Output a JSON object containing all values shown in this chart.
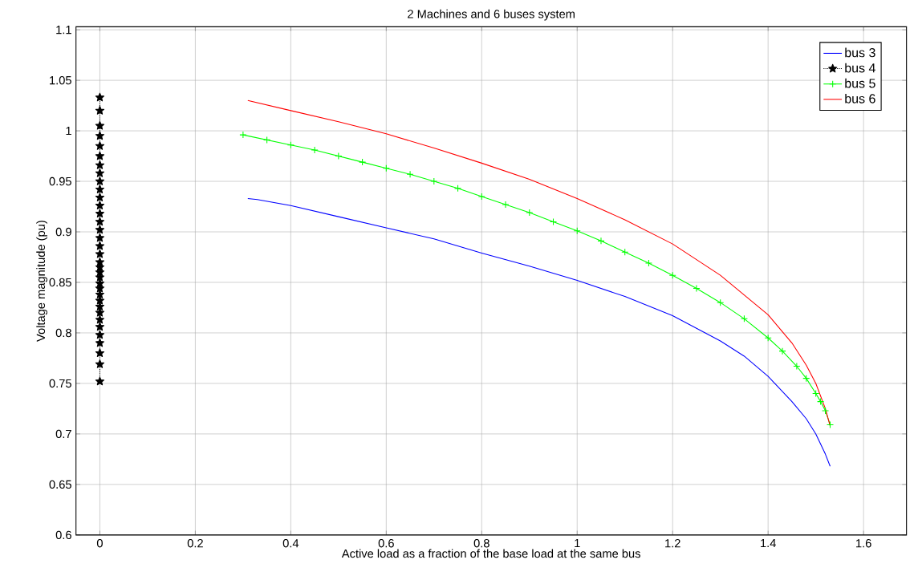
{
  "chart_data": {
    "type": "line",
    "title": "2 Machines and 6  buses  system",
    "xlabel": "Active load as a fraction of the base load at the same bus",
    "ylabel": "Voltage magnitude (pu)",
    "xlim": [
      -0.05,
      1.69
    ],
    "ylim": [
      0.6,
      1.103
    ],
    "xticks": [
      0,
      0.2,
      0.4,
      0.6,
      0.8,
      1,
      1.2,
      1.4,
      1.6
    ],
    "yticks": [
      0.6,
      0.65,
      0.7,
      0.75,
      0.8,
      0.85,
      0.9,
      0.95,
      1,
      1.05,
      1.1
    ],
    "grid": true,
    "legend": "top right",
    "series": [
      {
        "name": "bus 3",
        "color": "#0000ff",
        "marker": "none",
        "line_style": "solid",
        "x": [
          0.31,
          0.33,
          0.4,
          0.5,
          0.6,
          0.7,
          0.8,
          0.9,
          1.0,
          1.1,
          1.2,
          1.3,
          1.35,
          1.4,
          1.45,
          1.48,
          1.5,
          1.52,
          1.53
        ],
        "values": [
          0.933,
          0.932,
          0.926,
          0.915,
          0.904,
          0.893,
          0.879,
          0.866,
          0.852,
          0.836,
          0.817,
          0.792,
          0.777,
          0.757,
          0.732,
          0.715,
          0.7,
          0.68,
          0.668
        ]
      },
      {
        "name": "bus 4",
        "color": "#000000",
        "marker": "star",
        "line_style": "dotted",
        "x": [
          0,
          0,
          0,
          0,
          0,
          0,
          0,
          0,
          0,
          0,
          0,
          0,
          0,
          0,
          0,
          0,
          0,
          0,
          0,
          0,
          0,
          0,
          0,
          0,
          0,
          0,
          0,
          0,
          0,
          0,
          0,
          0,
          0,
          0,
          0
        ],
        "values": [
          0.752,
          0.769,
          0.78,
          0.79,
          0.798,
          0.806,
          0.813,
          0.82,
          0.826,
          0.832,
          0.838,
          0.844,
          0.849,
          0.855,
          0.86,
          0.865,
          0.87,
          0.878,
          0.886,
          0.894,
          0.902,
          0.91,
          0.918,
          0.926,
          0.934,
          0.942,
          0.95,
          0.958,
          0.966,
          0.975,
          0.985,
          0.995,
          1.005,
          1.02,
          1.033
        ]
      },
      {
        "name": "bus 5",
        "color": "#00ff00",
        "marker": "cross",
        "line_style": "solid",
        "x": [
          0.3,
          0.35,
          0.4,
          0.45,
          0.5,
          0.55,
          0.6,
          0.65,
          0.7,
          0.75,
          0.8,
          0.85,
          0.9,
          0.95,
          1.0,
          1.05,
          1.1,
          1.15,
          1.2,
          1.25,
          1.3,
          1.35,
          1.4,
          1.43,
          1.46,
          1.48,
          1.5,
          1.51,
          1.52,
          1.53
        ],
        "values": [
          0.996,
          0.991,
          0.986,
          0.981,
          0.975,
          0.969,
          0.963,
          0.957,
          0.95,
          0.943,
          0.935,
          0.927,
          0.919,
          0.91,
          0.901,
          0.891,
          0.88,
          0.869,
          0.857,
          0.844,
          0.83,
          0.814,
          0.795,
          0.782,
          0.767,
          0.755,
          0.74,
          0.732,
          0.723,
          0.709
        ]
      },
      {
        "name": "bus 6",
        "color": "#ff0000",
        "marker": "none",
        "line_style": "solid",
        "x": [
          0.31,
          0.4,
          0.5,
          0.6,
          0.7,
          0.8,
          0.9,
          1.0,
          1.1,
          1.2,
          1.3,
          1.4,
          1.45,
          1.48,
          1.5,
          1.52,
          1.53
        ],
        "values": [
          1.03,
          1.02,
          1.009,
          0.997,
          0.983,
          0.968,
          0.952,
          0.933,
          0.912,
          0.888,
          0.857,
          0.818,
          0.79,
          0.768,
          0.75,
          0.725,
          0.708
        ]
      }
    ]
  }
}
